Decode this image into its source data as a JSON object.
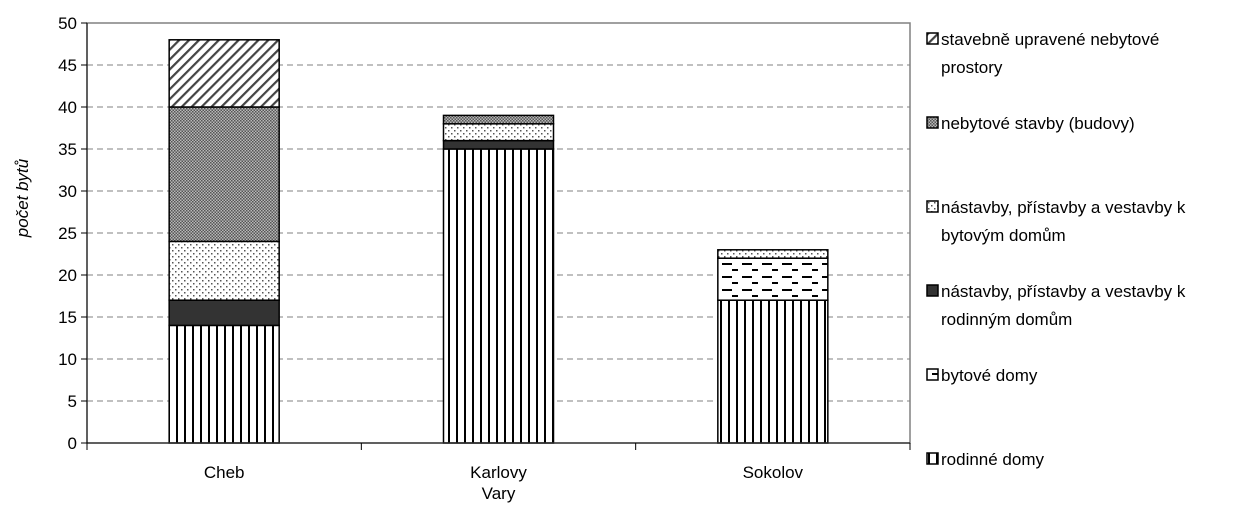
{
  "chart_data": {
    "type": "bar",
    "stacked": true,
    "title": "",
    "xlabel": "",
    "ylabel": "počet bytů",
    "ylim": [
      0,
      50
    ],
    "yticks": [
      0,
      5,
      10,
      15,
      20,
      25,
      30,
      35,
      40,
      45,
      50
    ],
    "grid": "horizontal dashed",
    "legend_position": "right",
    "categories": [
      [
        "Cheb"
      ],
      [
        "Karlovy",
        "Vary"
      ],
      [
        "Sokolov"
      ]
    ],
    "series": [
      {
        "name": "rodinné domy",
        "values": [
          14,
          35,
          17
        ],
        "pattern": "vertical-lines",
        "legend_lines": [
          "rodinné domy"
        ]
      },
      {
        "name": "bytové domy",
        "values": [
          0,
          0,
          5
        ],
        "pattern": "horizontal-dashes",
        "legend_lines": [
          "bytové domy"
        ]
      },
      {
        "name": "nástavby, přístavby a vestavby k rodinným domům",
        "values": [
          3,
          1,
          0
        ],
        "pattern": "solid-dark",
        "legend_lines": [
          "nástavby, přístavby a vestavby k",
          "rodinným domům"
        ]
      },
      {
        "name": "nástavby, přístavby a vestavby k bytovým domům",
        "values": [
          7,
          2,
          1
        ],
        "pattern": "dots",
        "legend_lines": [
          "nástavby, přístavby a vestavby k",
          "bytovým domům"
        ]
      },
      {
        "name": "nebytové stavby (budovy)",
        "values": [
          16,
          1,
          0
        ],
        "pattern": "dense-checker",
        "legend_lines": [
          "nebytové stavby (budovy)"
        ]
      },
      {
        "name": "stavebně upravené nebytové prostory",
        "values": [
          8,
          0,
          0
        ],
        "pattern": "diagonal-lines",
        "legend_lines": [
          "stavebně upravené nebytové",
          "prostory"
        ]
      }
    ]
  }
}
